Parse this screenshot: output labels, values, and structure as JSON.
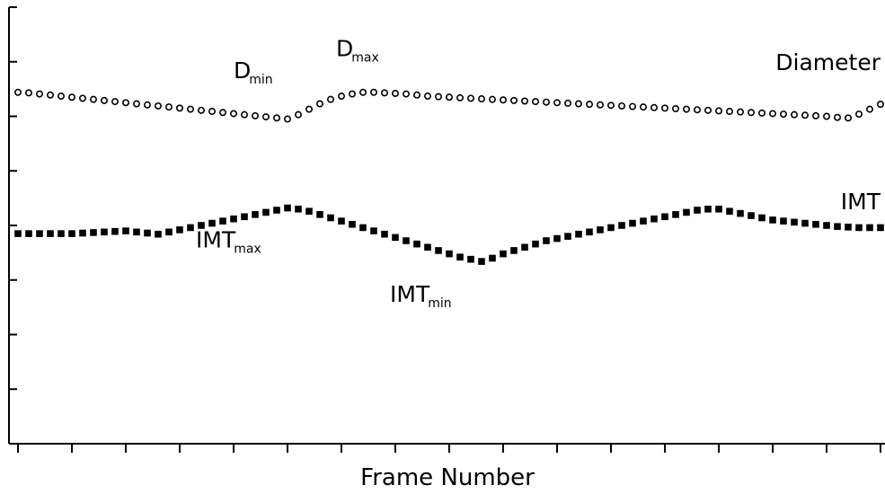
{
  "chart_data": {
    "type": "scatter",
    "title": "",
    "xlabel": "Frame Number",
    "ylabel": "",
    "xlim": [
      0,
      80
    ],
    "ylim": [
      0,
      8
    ],
    "grid": false,
    "series": [
      {
        "name": "Diameter",
        "marker": "open-circle",
        "x": [
          0,
          1,
          2,
          3,
          4,
          5,
          6,
          7,
          8,
          9,
          10,
          11,
          12,
          13,
          14,
          15,
          16,
          17,
          18,
          19,
          20,
          21,
          22,
          23,
          24,
          25,
          26,
          27,
          28,
          29,
          30,
          31,
          32,
          33,
          34,
          35,
          36,
          37,
          38,
          39,
          40,
          41,
          42,
          43,
          44,
          45,
          46,
          47,
          48,
          49,
          50,
          51,
          52,
          53,
          54,
          55,
          56,
          57,
          58,
          59,
          60,
          61,
          62,
          63,
          64,
          65,
          66,
          67,
          68,
          69,
          70,
          71,
          72,
          73,
          74,
          75,
          76,
          77,
          78,
          79,
          80
        ],
        "y": [
          6.44,
          6.43,
          6.41,
          6.39,
          6.37,
          6.35,
          6.33,
          6.31,
          6.29,
          6.27,
          6.25,
          6.23,
          6.21,
          6.19,
          6.17,
          6.15,
          6.13,
          6.11,
          6.09,
          6.07,
          6.05,
          6.03,
          6.01,
          5.99,
          5.97,
          5.95,
          6.03,
          6.13,
          6.23,
          6.31,
          6.37,
          6.41,
          6.44,
          6.44,
          6.43,
          6.42,
          6.41,
          6.39,
          6.37,
          6.36,
          6.35,
          6.34,
          6.33,
          6.32,
          6.31,
          6.3,
          6.29,
          6.28,
          6.27,
          6.26,
          6.25,
          6.24,
          6.23,
          6.22,
          6.21,
          6.2,
          6.19,
          6.18,
          6.17,
          6.16,
          6.15,
          6.14,
          6.13,
          6.12,
          6.11,
          6.1,
          6.09,
          6.08,
          6.07,
          6.06,
          6.05,
          6.04,
          6.03,
          6.02,
          6.01,
          6.0,
          5.98,
          5.97,
          6.04,
          6.13,
          6.22
        ]
      },
      {
        "name": "IMT",
        "marker": "filled-square",
        "x": [
          0,
          1,
          2,
          3,
          4,
          5,
          6,
          7,
          8,
          9,
          10,
          11,
          12,
          13,
          14,
          15,
          16,
          17,
          18,
          19,
          20,
          21,
          22,
          23,
          24,
          25,
          26,
          27,
          28,
          29,
          30,
          31,
          32,
          33,
          34,
          35,
          36,
          37,
          38,
          39,
          40,
          41,
          42,
          43,
          44,
          45,
          46,
          47,
          48,
          49,
          50,
          51,
          52,
          53,
          54,
          55,
          56,
          57,
          58,
          59,
          60,
          61,
          62,
          63,
          64,
          65,
          66,
          67,
          68,
          69,
          70,
          71,
          72,
          73,
          74,
          75,
          76,
          77,
          78,
          79,
          80
        ],
        "y": [
          3.85,
          3.85,
          3.85,
          3.85,
          3.85,
          3.85,
          3.86,
          3.87,
          3.88,
          3.89,
          3.9,
          3.88,
          3.86,
          3.84,
          3.88,
          3.92,
          3.96,
          4.0,
          4.04,
          4.08,
          4.12,
          4.16,
          4.2,
          4.24,
          4.28,
          4.32,
          4.3,
          4.26,
          4.2,
          4.14,
          4.08,
          4.02,
          3.96,
          3.9,
          3.84,
          3.78,
          3.72,
          3.66,
          3.6,
          3.54,
          3.48,
          3.42,
          3.38,
          3.34,
          3.4,
          3.48,
          3.54,
          3.6,
          3.66,
          3.72,
          3.76,
          3.8,
          3.84,
          3.88,
          3.92,
          3.96,
          4.0,
          4.04,
          4.08,
          4.12,
          4.16,
          4.2,
          4.24,
          4.28,
          4.3,
          4.3,
          4.26,
          4.22,
          4.18,
          4.14,
          4.1,
          4.08,
          4.06,
          4.04,
          4.02,
          4.0,
          3.98,
          3.97,
          3.96,
          3.96,
          3.96
        ]
      }
    ],
    "annotations": [
      {
        "id": "dmin",
        "main": "D",
        "sub": "min",
        "x": 20,
        "y": 6.7
      },
      {
        "id": "dmax",
        "main": "D",
        "sub": "max",
        "x": 29.5,
        "y": 7.1
      },
      {
        "id": "imtmax",
        "main": "IMT",
        "sub": "max",
        "x": 16.5,
        "y": 3.6
      },
      {
        "id": "imtmin",
        "main": "IMT",
        "sub": "min",
        "x": 34.5,
        "y": 2.6
      }
    ],
    "series_labels": [
      {
        "text": "Diameter",
        "x": 80,
        "y": 6.85
      },
      {
        "text": "IMT",
        "x": 80,
        "y": 4.3
      }
    ]
  }
}
